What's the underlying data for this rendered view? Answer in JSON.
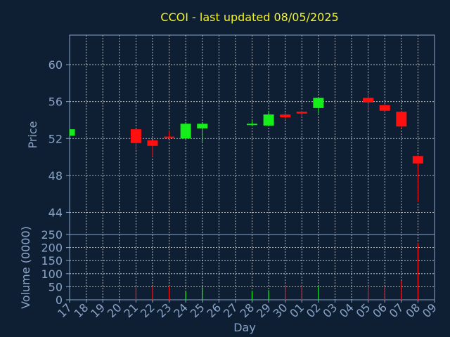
{
  "title": "CCOI - last updated 08/05/2025",
  "colors": {
    "background": "#0e1f33",
    "axis": "#8aa5c8",
    "grid": "#ffffff",
    "title": "#f5f31c",
    "up": "#16f01a",
    "down": "#ff1010"
  },
  "chart_data": [
    {
      "type": "candlestick",
      "title": "CCOI - last updated 08/05/2025",
      "xlabel": "",
      "ylabel": "Price",
      "ylim": [
        41.6,
        63.2
      ],
      "yticks": [
        44,
        48,
        52,
        56,
        60
      ],
      "grid": true,
      "x_categories": [
        "17",
        "18",
        "19",
        "20",
        "21",
        "22",
        "23",
        "24",
        "25",
        "26",
        "27",
        "28",
        "29",
        "30",
        "01",
        "02",
        "03",
        "04",
        "05",
        "06",
        "07",
        "08",
        "09"
      ],
      "candles": [
        {
          "x": "17",
          "open": 52.3,
          "close": 53.0,
          "high": 53.0,
          "low": 52.3
        },
        {
          "x": "21",
          "open": 53.0,
          "close": 51.5,
          "high": 53.0,
          "low": 50.8
        },
        {
          "x": "22",
          "open": 51.8,
          "close": 51.2,
          "high": 51.8,
          "low": 50.0
        },
        {
          "x": "23",
          "open": 52.2,
          "close": 52.1,
          "high": 52.8,
          "low": 52.0
        },
        {
          "x": "24",
          "open": 52.0,
          "close": 53.6,
          "high": 53.6,
          "low": 52.0
        },
        {
          "x": "25",
          "open": 53.1,
          "close": 53.6,
          "high": 53.7,
          "low": 51.6
        },
        {
          "x": "28",
          "open": 53.6,
          "close": 53.6,
          "high": 53.9,
          "low": 53.4
        },
        {
          "x": "29",
          "open": 53.4,
          "close": 54.6,
          "high": 55.0,
          "low": 53.4
        },
        {
          "x": "30",
          "open": 54.6,
          "close": 54.3,
          "high": 54.8,
          "low": 54.0
        },
        {
          "x": "01",
          "open": 54.9,
          "close": 54.7,
          "high": 55.0,
          "low": 54.3
        },
        {
          "x": "02",
          "open": 55.3,
          "close": 56.4,
          "high": 56.4,
          "low": 54.7
        },
        {
          "x": "05",
          "open": 56.4,
          "close": 55.9,
          "high": 56.9,
          "low": 55.0
        },
        {
          "x": "06",
          "open": 55.6,
          "close": 55.0,
          "high": 55.8,
          "low": 54.8
        },
        {
          "x": "07",
          "open": 54.9,
          "close": 53.3,
          "high": 55.0,
          "low": 53.1
        },
        {
          "x": "08",
          "open": 50.1,
          "close": 49.3,
          "high": 50.2,
          "low": 45.1
        }
      ]
    },
    {
      "type": "bar",
      "title": "",
      "xlabel": "Day",
      "ylabel": "Volume (0000)",
      "ylim": [
        0,
        250
      ],
      "yticks": [
        0,
        50,
        100,
        150,
        200,
        250
      ],
      "grid": true,
      "bars": [
        {
          "x": "17",
          "value": 1,
          "dir": "up"
        },
        {
          "x": "21",
          "value": 48,
          "dir": "down"
        },
        {
          "x": "22",
          "value": 52,
          "dir": "down"
        },
        {
          "x": "23",
          "value": 52,
          "dir": "down"
        },
        {
          "x": "24",
          "value": 33,
          "dir": "up"
        },
        {
          "x": "25",
          "value": 48,
          "dir": "up"
        },
        {
          "x": "28",
          "value": 34,
          "dir": "up"
        },
        {
          "x": "29",
          "value": 37,
          "dir": "up"
        },
        {
          "x": "30",
          "value": 57,
          "dir": "down"
        },
        {
          "x": "01",
          "value": 55,
          "dir": "down"
        },
        {
          "x": "02",
          "value": 53,
          "dir": "up"
        },
        {
          "x": "05",
          "value": 53,
          "dir": "down"
        },
        {
          "x": "06",
          "value": 50,
          "dir": "down"
        },
        {
          "x": "07",
          "value": 73,
          "dir": "down"
        },
        {
          "x": "08",
          "value": 217,
          "dir": "down"
        }
      ]
    }
  ]
}
